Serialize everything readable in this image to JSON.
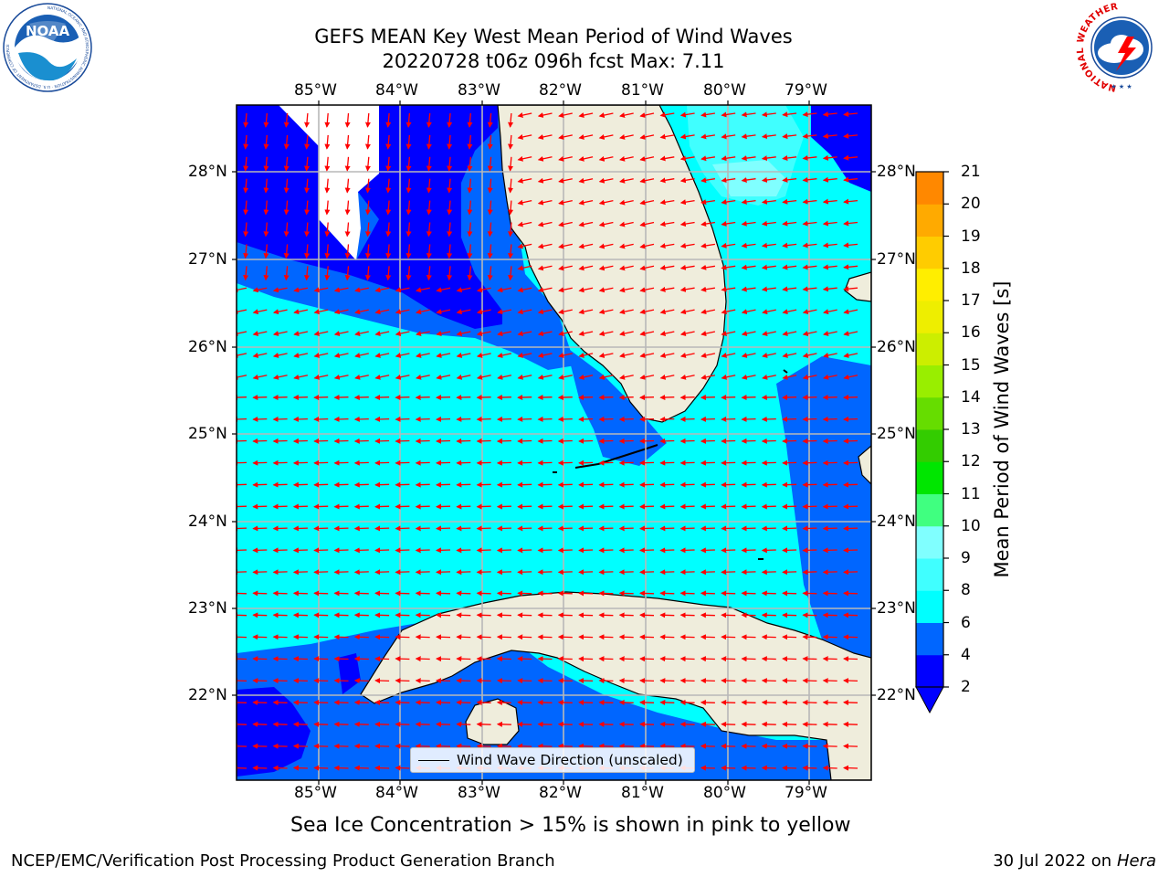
{
  "header": {
    "title_line1": "GEFS MEAN Key West Mean Period of Wind Waves",
    "title_line2": "20220728 t06z 096h fcst   Max: 7.11"
  },
  "logos": {
    "noaa_text": "NOAA",
    "noaa_ring_text": "NATIONAL OCEANIC AND ATMOSPHERIC ADMINISTRATION · U.S. DEPARTMENT OF COMMERCE",
    "nws_ring_text": "NATIONAL WEATHER SERVICE"
  },
  "map": {
    "lon_ticks": [
      "85°W",
      "84°W",
      "83°W",
      "82°W",
      "81°W",
      "80°W",
      "79°W"
    ],
    "lat_ticks": [
      "28°N",
      "27°N",
      "26°N",
      "25°N",
      "24°N",
      "23°N",
      "22°N"
    ],
    "legend_label": "Wind Wave Direction (unscaled)",
    "arrow_color": "#ff0000",
    "land_color": "#efeddc"
  },
  "colorbar": {
    "label": "Mean Period of Wind Waves [s]",
    "ticks": [
      "2",
      "4",
      "6",
      "8",
      "9",
      "10",
      "11",
      "12",
      "13",
      "14",
      "15",
      "16",
      "17",
      "18",
      "19",
      "20",
      "21"
    ],
    "colors": [
      "#0000ff",
      "#0066ff",
      "#00ffff",
      "#40ffff",
      "#80ffff",
      "#40ff80",
      "#00e600",
      "#33cc00",
      "#66dd00",
      "#99ee00",
      "#ccee00",
      "#eeee00",
      "#ffee00",
      "#ffcc00",
      "#ffaa00",
      "#ff8800",
      "#ff5500",
      "#ff2200",
      "#ff0000"
    ],
    "below_min_color": "#0000ff"
  },
  "caption": "Sea Ice Concentration > 15% is shown in pink to yellow",
  "footer": {
    "left": "NCEP/EMC/Verification Post Processing Product Generation Branch",
    "right_date": "30 Jul 2022 on ",
    "right_host": "Hera"
  }
}
